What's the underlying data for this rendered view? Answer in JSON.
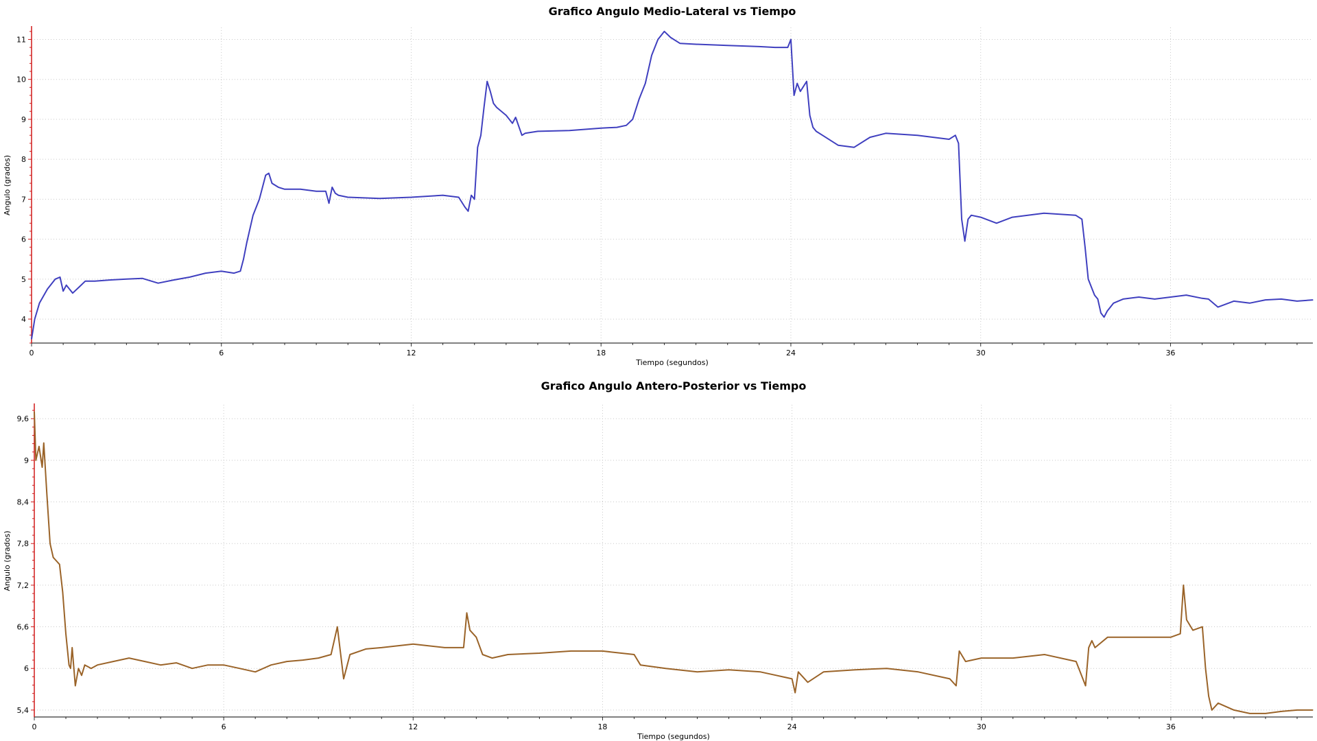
{
  "chart_data": [
    {
      "type": "line",
      "title": "Grafico Angulo Medio-Lateral vs Tiempo",
      "xlabel": "Tiempo (segundos)",
      "ylabel": "Angulo (grados)",
      "xlim": [
        0,
        40.5
      ],
      "ylim": [
        3.4,
        11.3
      ],
      "xticks": [
        0,
        6,
        12,
        18,
        24,
        30,
        36
      ],
      "xtick_labels": [
        "0",
        "6",
        "12",
        "18",
        "24",
        "30",
        "36"
      ],
      "yticks": [
        4,
        5,
        6,
        7,
        8,
        9,
        10,
        11
      ],
      "ytick_labels": [
        "4",
        "5",
        "6",
        "7",
        "8",
        "9",
        "10",
        "11"
      ],
      "grid": true,
      "legend": "none",
      "series": [
        {
          "color": "#3f3fbf",
          "x": [
            0,
            0.1,
            0.25,
            0.5,
            0.75,
            0.9,
            1.0,
            1.1,
            1.3,
            1.5,
            1.7,
            2.0,
            2.5,
            3.0,
            3.5,
            4.0,
            4.5,
            5.0,
            5.5,
            6.0,
            6.4,
            6.6,
            6.7,
            6.8,
            7.0,
            7.2,
            7.4,
            7.5,
            7.6,
            7.8,
            8.0,
            8.5,
            9.0,
            9.3,
            9.4,
            9.5,
            9.6,
            9.7,
            10.0,
            11.0,
            12.0,
            13.0,
            13.5,
            13.7,
            13.8,
            13.9,
            14.0,
            14.1,
            14.2,
            14.3,
            14.4,
            14.5,
            14.6,
            14.7,
            15.0,
            15.2,
            15.3,
            15.5,
            15.6,
            16.0,
            17.0,
            18.0,
            18.5,
            18.8,
            19.0,
            19.2,
            19.4,
            19.6,
            19.8,
            20.0,
            20.2,
            20.5,
            21.0,
            22.0,
            23.0,
            23.5,
            23.9,
            24.0,
            24.1,
            24.2,
            24.3,
            24.5,
            24.6,
            24.7,
            24.8,
            25.0,
            25.5,
            26.0,
            26.5,
            27.0,
            28.0,
            29.0,
            29.2,
            29.3,
            29.4,
            29.5,
            29.6,
            29.7,
            30.0,
            30.5,
            31.0,
            32.0,
            33.0,
            33.2,
            33.3,
            33.4,
            33.5,
            33.6,
            33.7,
            33.8,
            33.9,
            34.0,
            34.2,
            34.5,
            35.0,
            35.5,
            36.0,
            36.5,
            37.0,
            37.2,
            37.5,
            38.0,
            38.5,
            39.0,
            39.5,
            40.0,
            40.5
          ],
          "y": [
            3.5,
            4.0,
            4.4,
            4.75,
            5.0,
            5.05,
            4.7,
            4.85,
            4.65,
            4.8,
            4.95,
            4.95,
            4.98,
            5.0,
            5.02,
            4.9,
            4.98,
            5.05,
            5.15,
            5.2,
            5.15,
            5.2,
            5.5,
            5.9,
            6.6,
            7.0,
            7.6,
            7.65,
            7.4,
            7.3,
            7.25,
            7.25,
            7.2,
            7.2,
            6.9,
            7.3,
            7.15,
            7.1,
            7.05,
            7.02,
            7.05,
            7.1,
            7.05,
            6.8,
            6.7,
            7.1,
            7.0,
            8.3,
            8.6,
            9.3,
            9.95,
            9.7,
            9.4,
            9.3,
            9.1,
            8.9,
            9.05,
            8.6,
            8.65,
            8.7,
            8.72,
            8.78,
            8.8,
            8.85,
            9.0,
            9.5,
            9.9,
            10.6,
            11.0,
            11.2,
            11.05,
            10.9,
            10.88,
            10.85,
            10.82,
            10.8,
            10.8,
            11.0,
            9.6,
            9.9,
            9.7,
            9.95,
            9.1,
            8.8,
            8.7,
            8.6,
            8.35,
            8.3,
            8.55,
            8.65,
            8.6,
            8.5,
            8.6,
            8.4,
            6.5,
            5.95,
            6.5,
            6.6,
            6.55,
            6.4,
            6.55,
            6.65,
            6.6,
            6.5,
            5.8,
            5.0,
            4.8,
            4.6,
            4.5,
            4.15,
            4.05,
            4.2,
            4.4,
            4.5,
            4.55,
            4.5,
            4.55,
            4.6,
            4.52,
            4.5,
            4.3,
            4.45,
            4.4,
            4.48,
            4.5,
            4.45,
            4.48
          ]
        }
      ]
    },
    {
      "type": "line",
      "title": "Grafico Angulo Antero-Posterior vs Tiempo",
      "xlabel": "Tiempo (segundos)",
      "ylabel": "Angulo (grados)",
      "xlim": [
        0,
        40.5
      ],
      "ylim": [
        5.3,
        9.8
      ],
      "xticks": [
        0,
        6,
        12,
        18,
        24,
        30,
        36
      ],
      "xtick_labels": [
        "0",
        "6",
        "12",
        "18",
        "24",
        "30",
        "36"
      ],
      "yticks": [
        5.4,
        6,
        6.6,
        7.2,
        7.8,
        8.4,
        9,
        9.6
      ],
      "ytick_labels": [
        "5,4",
        "6",
        "6,6",
        "7,2",
        "7,8",
        "8,4",
        "9",
        "9,6"
      ],
      "grid": true,
      "legend": "none",
      "series": [
        {
          "color": "#9a6328",
          "x": [
            0,
            0.05,
            0.15,
            0.25,
            0.3,
            0.4,
            0.5,
            0.6,
            0.7,
            0.8,
            0.9,
            1.0,
            1.1,
            1.15,
            1.2,
            1.3,
            1.4,
            1.5,
            1.6,
            1.8,
            2.0,
            2.5,
            3.0,
            3.5,
            4.0,
            4.5,
            5.0,
            5.5,
            6.0,
            6.5,
            7.0,
            7.5,
            8.0,
            8.5,
            9.0,
            9.4,
            9.6,
            9.8,
            10.0,
            10.5,
            11.0,
            12.0,
            13.0,
            13.6,
            13.7,
            13.8,
            14.0,
            14.2,
            14.5,
            15.0,
            16.0,
            17.0,
            18.0,
            19.0,
            19.2,
            20.0,
            21.0,
            22.0,
            23.0,
            23.5,
            24.0,
            24.1,
            24.2,
            24.5,
            25.0,
            26.0,
            27.0,
            28.0,
            29.0,
            29.2,
            29.3,
            29.5,
            30.0,
            31.0,
            32.0,
            33.0,
            33.3,
            33.4,
            33.5,
            33.6,
            34.0,
            35.0,
            36.0,
            36.3,
            36.4,
            36.5,
            36.7,
            37.0,
            37.1,
            37.2,
            37.3,
            37.5,
            38.0,
            38.5,
            39.0,
            39.5,
            40.0,
            40.5
          ],
          "y": [
            9.7,
            9.0,
            9.2,
            8.9,
            9.25,
            8.5,
            7.8,
            7.6,
            7.55,
            7.5,
            7.1,
            6.5,
            6.05,
            6.0,
            6.3,
            5.75,
            6.0,
            5.9,
            6.05,
            6.0,
            6.05,
            6.1,
            6.15,
            6.1,
            6.05,
            6.08,
            6.0,
            6.05,
            6.05,
            6.0,
            5.95,
            6.05,
            6.1,
            6.12,
            6.15,
            6.2,
            6.6,
            5.85,
            6.2,
            6.28,
            6.3,
            6.35,
            6.3,
            6.3,
            6.8,
            6.55,
            6.45,
            6.2,
            6.15,
            6.2,
            6.22,
            6.25,
            6.25,
            6.2,
            6.05,
            6.0,
            5.95,
            5.98,
            5.95,
            5.9,
            5.85,
            5.65,
            5.95,
            5.8,
            5.95,
            5.98,
            6.0,
            5.95,
            5.85,
            5.75,
            6.25,
            6.1,
            6.15,
            6.15,
            6.2,
            6.1,
            5.75,
            6.3,
            6.4,
            6.3,
            6.45,
            6.45,
            6.45,
            6.5,
            7.2,
            6.7,
            6.55,
            6.6,
            6.0,
            5.6,
            5.4,
            5.5,
            5.4,
            5.35,
            5.35,
            5.38,
            5.4,
            5.4
          ]
        }
      ]
    }
  ]
}
